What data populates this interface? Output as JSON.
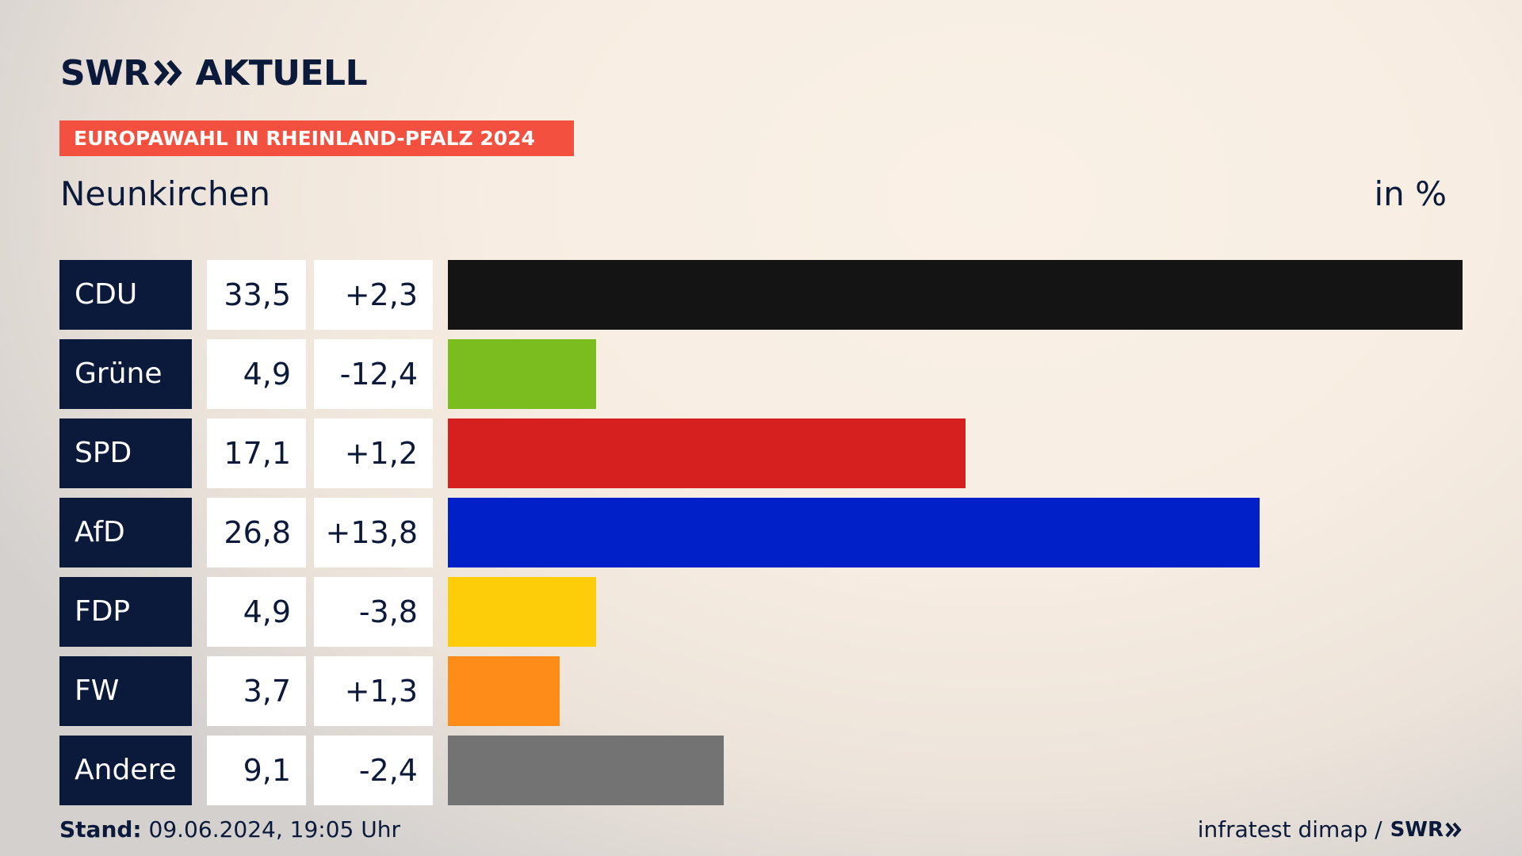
{
  "header": {
    "logo_brand": "SWR",
    "logo_suffix": "AKTUELL",
    "kicker": "EUROPAWAHL IN RHEINLAND-PFALZ 2024",
    "subtitle": "Neunkirchen",
    "unit": "in %"
  },
  "colors": {
    "navy": "#0b1a3a",
    "kicker": "#f4503f"
  },
  "chart_data": {
    "type": "bar",
    "orientation": "horizontal",
    "title": "Neunkirchen",
    "unit_label": "in %",
    "categories": [
      "CDU",
      "Grüne",
      "SPD",
      "AfD",
      "FDP",
      "FW",
      "Andere"
    ],
    "values": [
      33.5,
      4.9,
      17.1,
      26.8,
      4.9,
      3.7,
      9.1
    ],
    "value_labels": [
      "33,5",
      "4,9",
      "17,1",
      "26,8",
      "4,9",
      "3,7",
      "9,1"
    ],
    "diff_labels": [
      "+2,3",
      "-12,4",
      "+1,2",
      "+13,8",
      "-3,8",
      "+1,3",
      "-2,4"
    ],
    "bar_colors": [
      "#141414",
      "#7bbd1e",
      "#d61f1f",
      "#0120c8",
      "#fdcd0a",
      "#fd8c18",
      "#737373"
    ],
    "xlim": [
      0,
      33.5
    ]
  },
  "footer": {
    "stand_label": "Stand:",
    "stand_value": "09.06.2024, 19:05 Uhr",
    "source": "infratest dimap /",
    "source_brand": "SWR"
  }
}
